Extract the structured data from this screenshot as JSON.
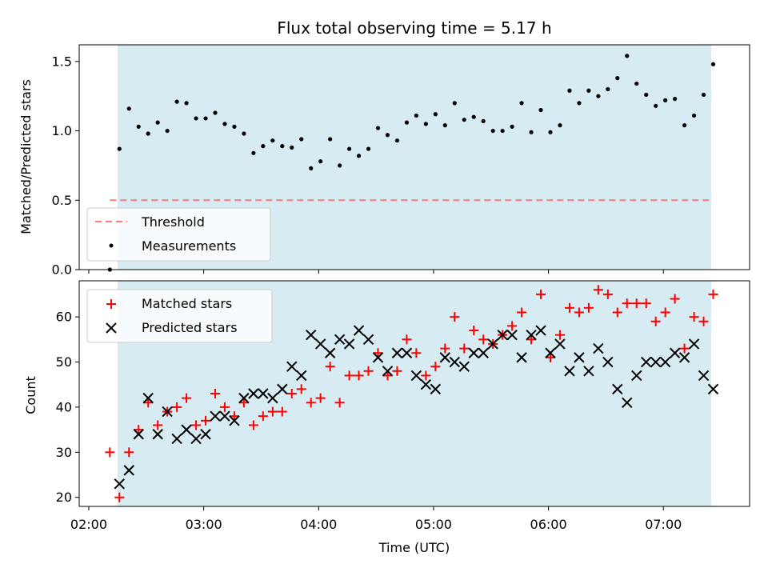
{
  "chart_data": [
    {
      "type": "scatter",
      "title": "Flux total observing time = 5.17 h",
      "xlabel": "",
      "ylabel": "Matched/Predicted stars",
      "ylim": [
        0,
        1.62
      ],
      "yticks": [
        "0.0",
        "0.5",
        "1.0",
        "1.5"
      ],
      "yticks_values": [
        0,
        0.5,
        1.0,
        1.5
      ],
      "shaded_interval": [
        "02:15",
        "07:25"
      ],
      "shaded_color": "#add8e6",
      "legend_position": "lower-left",
      "threshold": {
        "name": "Threshold",
        "value": 0.5,
        "x_start": "02:11",
        "x_end": "07:24",
        "color": "#f08080"
      },
      "series": [
        {
          "name": "Measurements",
          "color": "#000000",
          "x": [
            "02:11",
            "02:16",
            "02:21",
            "02:26",
            "02:31",
            "02:36",
            "02:41",
            "02:46",
            "02:51",
            "02:56",
            "03:01",
            "03:06",
            "03:11",
            "03:16",
            "03:21",
            "03:26",
            "03:31",
            "03:36",
            "03:41",
            "03:46",
            "03:51",
            "03:56",
            "04:01",
            "04:06",
            "04:11",
            "04:16",
            "04:21",
            "04:26",
            "04:31",
            "04:36",
            "04:41",
            "04:46",
            "04:51",
            "04:56",
            "05:01",
            "05:06",
            "05:11",
            "05:16",
            "05:21",
            "05:26",
            "05:31",
            "05:36",
            "05:41",
            "05:46",
            "05:51",
            "05:56",
            "06:01",
            "06:06",
            "06:11",
            "06:16",
            "06:21",
            "06:26",
            "06:31",
            "06:36",
            "06:41",
            "06:46",
            "06:51",
            "06:56",
            "07:01",
            "07:06",
            "07:11",
            "07:16",
            "07:21",
            "07:26"
          ],
          "values": [
            0.0,
            0.87,
            1.16,
            1.03,
            0.98,
            1.06,
            1.0,
            1.21,
            1.2,
            1.09,
            1.09,
            1.13,
            1.05,
            1.03,
            0.98,
            0.84,
            0.89,
            0.93,
            0.89,
            0.88,
            0.94,
            0.73,
            0.78,
            0.94,
            0.75,
            0.87,
            0.82,
            0.87,
            1.02,
            0.97,
            0.93,
            1.06,
            1.11,
            1.05,
            1.12,
            1.04,
            1.2,
            1.08,
            1.1,
            1.07,
            1.0,
            1.0,
            1.03,
            1.2,
            0.99,
            1.15,
            0.99,
            1.04,
            1.29,
            1.2,
            1.29,
            1.25,
            1.3,
            1.38,
            1.54,
            1.34,
            1.26,
            1.18,
            1.22,
            1.23,
            1.04,
            1.11,
            1.26,
            1.48
          ]
        }
      ]
    },
    {
      "type": "scatter",
      "title": "",
      "xlabel": "Time (UTC)",
      "ylabel": "Count",
      "ylim": [
        18,
        68
      ],
      "yticks": [
        "20",
        "30",
        "40",
        "50",
        "60"
      ],
      "yticks_values": [
        20,
        30,
        40,
        50,
        60
      ],
      "xlim": [
        "01:55",
        "07:45"
      ],
      "xticks": [
        "02:00",
        "03:00",
        "04:00",
        "05:00",
        "06:00",
        "07:00"
      ],
      "shaded_interval": [
        "02:15",
        "07:25"
      ],
      "shaded_color": "#add8e6",
      "legend_position": "top-left",
      "series": [
        {
          "name": "Matched stars",
          "marker": "plus",
          "color": "#ff0000",
          "x": [
            "02:11",
            "02:16",
            "02:21",
            "02:26",
            "02:31",
            "02:36",
            "02:41",
            "02:46",
            "02:51",
            "02:56",
            "03:01",
            "03:06",
            "03:11",
            "03:16",
            "03:21",
            "03:26",
            "03:31",
            "03:36",
            "03:41",
            "03:46",
            "03:51",
            "03:56",
            "04:01",
            "04:06",
            "04:11",
            "04:16",
            "04:21",
            "04:26",
            "04:31",
            "04:36",
            "04:41",
            "04:46",
            "04:51",
            "04:56",
            "05:01",
            "05:06",
            "05:11",
            "05:16",
            "05:21",
            "05:26",
            "05:31",
            "05:36",
            "05:41",
            "05:46",
            "05:51",
            "05:56",
            "06:01",
            "06:06",
            "06:11",
            "06:16",
            "06:21",
            "06:26",
            "06:31",
            "06:36",
            "06:41",
            "06:46",
            "06:51",
            "06:56",
            "07:01",
            "07:06",
            "07:11",
            "07:16",
            "07:21",
            "07:26"
          ],
          "values": [
            30,
            20,
            30,
            35,
            41,
            36,
            39,
            40,
            42,
            36,
            37,
            43,
            40,
            38,
            41,
            36,
            38,
            39,
            39,
            43,
            44,
            41,
            42,
            49,
            41,
            47,
            47,
            48,
            52,
            47,
            48,
            55,
            52,
            47,
            49,
            53,
            60,
            53,
            57,
            55,
            54,
            56,
            58,
            61,
            55,
            65,
            51,
            56,
            62,
            61,
            62,
            66,
            65,
            61,
            63,
            63,
            63,
            59,
            61,
            64,
            53,
            60,
            59,
            65
          ]
        },
        {
          "name": "Predicted stars",
          "marker": "x",
          "color": "#000000",
          "x": [
            "02:16",
            "02:21",
            "02:26",
            "02:31",
            "02:36",
            "02:41",
            "02:46",
            "02:51",
            "02:56",
            "03:01",
            "03:06",
            "03:11",
            "03:16",
            "03:21",
            "03:26",
            "03:31",
            "03:36",
            "03:41",
            "03:46",
            "03:51",
            "03:56",
            "04:01",
            "04:06",
            "04:11",
            "04:16",
            "04:21",
            "04:26",
            "04:31",
            "04:36",
            "04:41",
            "04:46",
            "04:51",
            "04:56",
            "05:01",
            "05:06",
            "05:11",
            "05:16",
            "05:21",
            "05:26",
            "05:31",
            "05:36",
            "05:41",
            "05:46",
            "05:51",
            "05:56",
            "06:01",
            "06:06",
            "06:11",
            "06:16",
            "06:21",
            "06:26",
            "06:31",
            "06:36",
            "06:41",
            "06:46",
            "06:51",
            "06:56",
            "07:01",
            "07:06",
            "07:11",
            "07:16",
            "07:21",
            "07:26"
          ],
          "values": [
            23,
            26,
            34,
            42,
            34,
            39,
            33,
            35,
            33,
            34,
            38,
            38,
            37,
            42,
            43,
            43,
            42,
            44,
            49,
            47,
            56,
            54,
            52,
            55,
            54,
            57,
            55,
            51,
            48,
            52,
            52,
            47,
            45,
            44,
            51,
            50,
            49,
            52,
            52,
            54,
            56,
            56,
            51,
            56,
            57,
            52,
            54,
            48,
            51,
            48,
            53,
            50,
            44,
            41,
            47,
            50,
            50,
            50,
            52,
            51,
            54,
            47,
            44
          ]
        }
      ]
    }
  ]
}
